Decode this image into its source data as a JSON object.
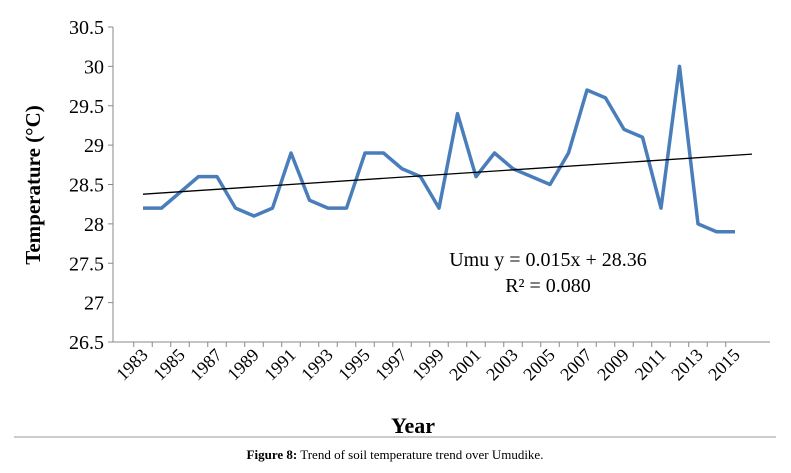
{
  "chart_data": {
    "type": "line",
    "y_label": "Temperature (°C)",
    "x_label": "Year",
    "categories": [
      "1983",
      null,
      "1985",
      null,
      "1987",
      null,
      "1989",
      null,
      "1991",
      null,
      "1993",
      null,
      "1995",
      null,
      "1997",
      null,
      "1999",
      null,
      "2001",
      null,
      "2003",
      null,
      "2005",
      null,
      "2007",
      null,
      "2009",
      null,
      "2011",
      null,
      "2013",
      null,
      "2015"
    ],
    "series": [
      {
        "name": "Umu",
        "color": "#4a7ebb",
        "values": [
          28.2,
          28.2,
          28.4,
          28.6,
          28.6,
          28.2,
          28.1,
          28.2,
          28.9,
          28.3,
          28.2,
          28.2,
          28.9,
          28.9,
          28.7,
          28.6,
          28.2,
          29.4,
          28.6,
          28.9,
          28.7,
          28.6,
          28.5,
          28.9,
          29.7,
          29.6,
          29.2,
          29.1,
          28.2,
          30.0,
          28.0,
          27.9,
          27.9
        ]
      }
    ],
    "trendline": true,
    "annotations": [
      "Umu y = 0.015x + 28.36",
      "R² = 0.080"
    ],
    "ylim": [
      26.5,
      30.5
    ],
    "yticks": [
      26.5,
      27,
      27.5,
      28,
      28.5,
      29,
      29.5,
      30,
      30.5
    ],
    "grid": false
  },
  "caption": {
    "label": "Figure 8:",
    "text": "Trend of soil temperature trend over Umudike."
  }
}
